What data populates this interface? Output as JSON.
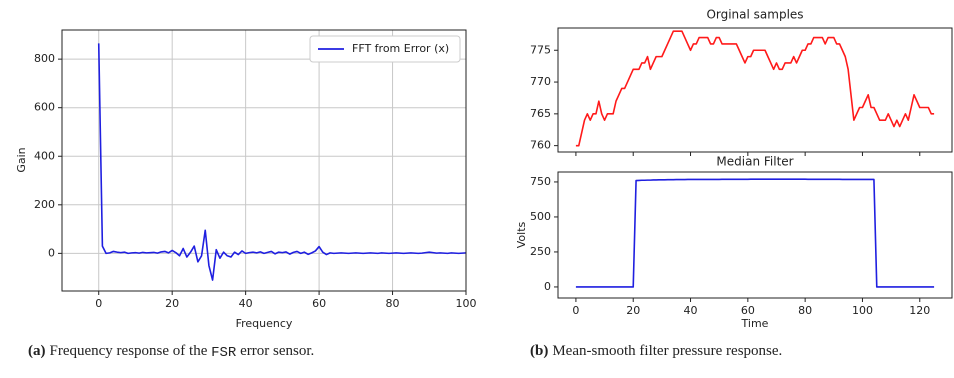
{
  "chart_data": [
    {
      "type": "line",
      "xlabel": "Frequency",
      "ylabel": "Gain",
      "grid": true,
      "legend": "upper right",
      "xlim": [
        -10,
        100
      ],
      "ylim": [
        -155,
        920
      ],
      "xticks": [
        0,
        20,
        40,
        60,
        80,
        100
      ],
      "yticks": [
        0,
        200,
        400,
        600,
        800
      ],
      "x": [
        0,
        1,
        2,
        3,
        4,
        5,
        6,
        7,
        8,
        9,
        10,
        11,
        12,
        13,
        14,
        15,
        16,
        17,
        18,
        19,
        20,
        21,
        22,
        23,
        24,
        25,
        26,
        27,
        28,
        29,
        30,
        31,
        32,
        33,
        34,
        35,
        36,
        37,
        38,
        39,
        40,
        41,
        42,
        43,
        44,
        45,
        46,
        47,
        48,
        49,
        50,
        51,
        52,
        53,
        54,
        55,
        56,
        57,
        58,
        59,
        60,
        61,
        62,
        63,
        64,
        65,
        66,
        67,
        68,
        69,
        70,
        71,
        72,
        73,
        74,
        75,
        76,
        77,
        78,
        79,
        80,
        81,
        82,
        83,
        84,
        85,
        86,
        87,
        88,
        89,
        90,
        91,
        92,
        93,
        94,
        95,
        96,
        97,
        98,
        99,
        100
      ],
      "series": [
        {
          "name": "FFT from Error (x)",
          "color": "#1f1fe0",
          "values": [
            865,
            30,
            0,
            2,
            8,
            5,
            3,
            5,
            0,
            2,
            3,
            1,
            4,
            2,
            3,
            4,
            1,
            6,
            8,
            2,
            12,
            3,
            -10,
            20,
            -15,
            5,
            30,
            -35,
            -10,
            95,
            -50,
            -110,
            15,
            -20,
            5,
            -10,
            -15,
            5,
            -5,
            10,
            0,
            3,
            5,
            2,
            6,
            0,
            4,
            8,
            -2,
            5,
            3,
            6,
            -3,
            4,
            8,
            0,
            5,
            -4,
            2,
            10,
            28,
            5,
            -5,
            2,
            0,
            1,
            2,
            1,
            0,
            1,
            2,
            1,
            0,
            1,
            2,
            1,
            0,
            2,
            1,
            0,
            1,
            2,
            1,
            0,
            1,
            2,
            1,
            0,
            1,
            3,
            5,
            3,
            1,
            2,
            1,
            0,
            2,
            1,
            0,
            1,
            2
          ]
        }
      ]
    },
    {
      "type": "line",
      "title": "Orginal samples",
      "grid": false,
      "xtick_labels": false,
      "xlim": [
        -6.25,
        131.25
      ],
      "ylim": [
        759,
        778.5
      ],
      "xticks": [
        0,
        20,
        40,
        60,
        80,
        100,
        120
      ],
      "yticks": [
        760,
        765,
        770,
        775
      ],
      "x": [
        0,
        1,
        2,
        3,
        4,
        5,
        6,
        7,
        8,
        9,
        10,
        11,
        12,
        13,
        14,
        15,
        16,
        17,
        18,
        19,
        20,
        21,
        22,
        23,
        24,
        25,
        26,
        27,
        28,
        29,
        30,
        31,
        32,
        33,
        34,
        35,
        36,
        37,
        38,
        39,
        40,
        41,
        42,
        43,
        44,
        45,
        46,
        47,
        48,
        49,
        50,
        51,
        52,
        53,
        54,
        55,
        56,
        57,
        58,
        59,
        60,
        61,
        62,
        63,
        64,
        65,
        66,
        67,
        68,
        69,
        70,
        71,
        72,
        73,
        74,
        75,
        76,
        77,
        78,
        79,
        80,
        81,
        82,
        83,
        84,
        85,
        86,
        87,
        88,
        89,
        90,
        91,
        92,
        93,
        94,
        95,
        96,
        97,
        98,
        99,
        100,
        101,
        102,
        103,
        104,
        105,
        106,
        107,
        108,
        109,
        110,
        111,
        112,
        113,
        114,
        115,
        116,
        117,
        118,
        119,
        120,
        121,
        122,
        123,
        124,
        125
      ],
      "series": [
        {
          "color": "#ff1a1a",
          "values": [
            760,
            760,
            762,
            764,
            765,
            764,
            765,
            765,
            767,
            765,
            764,
            765,
            765,
            765,
            767,
            768,
            769,
            769,
            770,
            771,
            772,
            772,
            772,
            773,
            773,
            774,
            772,
            773,
            774,
            774,
            774,
            775,
            776,
            777,
            778,
            778,
            778,
            778,
            777,
            776,
            775,
            776,
            776,
            777,
            777,
            777,
            777,
            776,
            776,
            777,
            777,
            776,
            776,
            776,
            776,
            776,
            776,
            775,
            774,
            773,
            774,
            774,
            775,
            775,
            775,
            775,
            775,
            774,
            773,
            772,
            773,
            772,
            772,
            773,
            773,
            773,
            774,
            773,
            774,
            775,
            775,
            776,
            776,
            777,
            777,
            777,
            777,
            776,
            777,
            777,
            777,
            776,
            776,
            775,
            774,
            772,
            768,
            764,
            765,
            766,
            766,
            767,
            768,
            766,
            766,
            765,
            764,
            764,
            764,
            765,
            764,
            763,
            764,
            763,
            764,
            765,
            764,
            766,
            768,
            767,
            766,
            766,
            766,
            766,
            765,
            765
          ]
        }
      ]
    },
    {
      "type": "line",
      "title": "Median Filter",
      "xlabel": "Time",
      "ylabel": "Volts",
      "grid": false,
      "xlim": [
        -6.25,
        131.25
      ],
      "ylim": [
        -79,
        821
      ],
      "xticks": [
        0,
        20,
        40,
        60,
        80,
        100,
        120
      ],
      "yticks": [
        0,
        250,
        500,
        750
      ],
      "x": [
        0,
        1,
        2,
        3,
        4,
        5,
        6,
        7,
        8,
        9,
        10,
        11,
        12,
        13,
        14,
        15,
        16,
        17,
        18,
        19,
        20,
        21,
        22,
        23,
        24,
        25,
        26,
        27,
        28,
        29,
        30,
        31,
        32,
        33,
        34,
        35,
        36,
        37,
        38,
        39,
        40,
        41,
        42,
        43,
        44,
        45,
        46,
        47,
        48,
        49,
        50,
        51,
        52,
        53,
        54,
        55,
        56,
        57,
        58,
        59,
        60,
        61,
        62,
        63,
        64,
        65,
        66,
        67,
        68,
        69,
        70,
        71,
        72,
        73,
        74,
        75,
        76,
        77,
        78,
        79,
        80,
        81,
        82,
        83,
        84,
        85,
        86,
        87,
        88,
        89,
        90,
        91,
        92,
        93,
        94,
        95,
        96,
        97,
        98,
        99,
        100,
        101,
        102,
        103,
        104,
        105,
        106,
        107,
        108,
        109,
        110,
        111,
        112,
        113,
        114,
        115,
        116,
        117,
        118,
        119,
        120,
        121,
        122,
        123,
        124,
        125
      ],
      "series": [
        {
          "color": "#1f1fe0",
          "values": [
            0,
            0,
            0,
            0,
            0,
            0,
            0,
            0,
            0,
            0,
            0,
            0,
            0,
            0,
            0,
            0,
            0,
            0,
            0,
            0,
            0,
            760,
            761,
            762,
            762,
            763,
            763,
            764,
            764,
            765,
            765,
            765,
            766,
            766,
            766,
            767,
            767,
            767,
            767,
            768,
            768,
            768,
            768,
            768,
            768,
            768,
            768,
            768,
            768,
            768,
            768,
            769,
            769,
            769,
            769,
            769,
            769,
            769,
            769,
            769,
            769,
            770,
            770,
            770,
            770,
            770,
            770,
            770,
            770,
            770,
            770,
            770,
            770,
            770,
            770,
            770,
            770,
            770,
            770,
            770,
            770,
            769,
            769,
            769,
            769,
            769,
            769,
            769,
            769,
            769,
            769,
            769,
            769,
            768,
            768,
            768,
            768,
            768,
            768,
            768,
            768,
            768,
            768,
            768,
            768,
            0,
            0,
            0,
            0,
            0,
            0,
            0,
            0,
            0,
            0,
            0,
            0,
            0,
            0,
            0,
            0,
            0,
            0,
            0,
            0,
            0
          ]
        }
      ]
    }
  ],
  "captions": [
    {
      "label": "(a)",
      "before": "Frequency response of the ",
      "code": "FSR",
      "after": " error sensor."
    },
    {
      "label": "(b)",
      "before": "Mean-smooth filter pressure response.",
      "code": "",
      "after": ""
    }
  ]
}
